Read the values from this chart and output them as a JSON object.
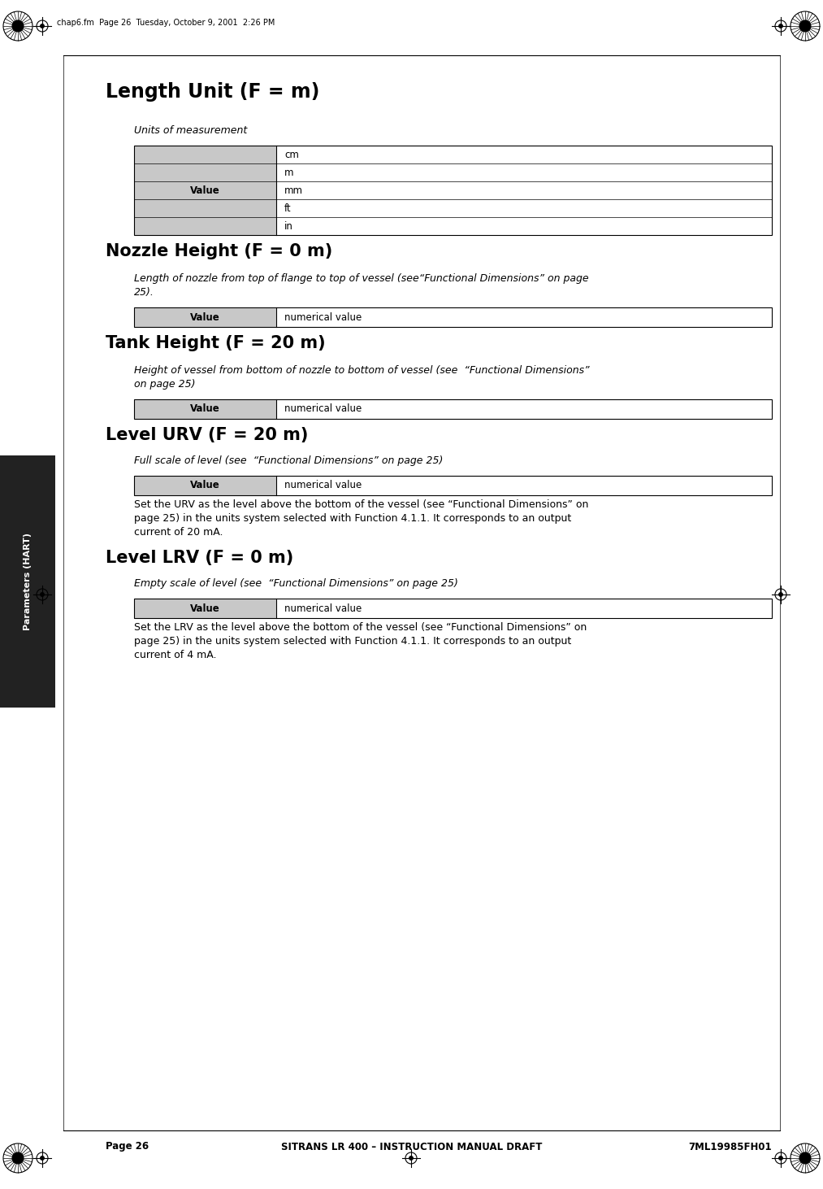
{
  "page_header": "chap6.fm  Page 26  Tuesday, October 9, 2001  2:26 PM",
  "page_footer_left": "Page 26",
  "page_footer_center": "SITRANS LR 400 – INSTRUCTION MANUAL DRAFT",
  "page_footer_right": "7ML19985FH01",
  "sidebar_text": "Parameters (HART)",
  "section1_title": "Length Unit (F = m)",
  "section1_subtitle": "Units of measurement",
  "section1_table_header": "Value",
  "section1_table_rows": [
    "cm",
    "m",
    "mm",
    "ft",
    "in"
  ],
  "section2_title": "Nozzle Height (F = 0 m)",
  "section2_desc_line1": "Length of nozzle from top of flange to top of vessel (see“Functional Dimensions” on page",
  "section2_desc_line2": "25).",
  "section2_table_header": "Value",
  "section2_table_value": "numerical value",
  "section3_title": "Tank Height (F = 20 m)",
  "section3_desc_line1": "Height of vessel from bottom of nozzle to bottom of vessel (see  “Functional Dimensions”",
  "section3_desc_line2": "on page 25)",
  "section3_table_header": "Value",
  "section3_table_value": "numerical value",
  "section4_title": "Level URV (F = 20 m)",
  "section4_subtitle": "Full scale of level (see  “Functional Dimensions” on page 25)",
  "section4_table_header": "Value",
  "section4_table_value": "numerical value",
  "section4_body_line1": "Set the URV as the level above the bottom of the vessel (see “Functional Dimensions” on",
  "section4_body_line2": "page 25) in the units system selected with Function 4.1.1. It corresponds to an output",
  "section4_body_line3": "current of 20 mA.",
  "section5_title": "Level LRV (F = 0 m)",
  "section5_subtitle": "Empty scale of level (see  “Functional Dimensions” on page 25)",
  "section5_table_header": "Value",
  "section5_table_value": "numerical value",
  "section5_body_line1": "Set the LRV as the level above the bottom of the vessel (see “Functional Dimensions” on",
  "section5_body_line2": "page 25) in the units system selected with Function 4.1.1. It corresponds to an output",
  "section5_body_line3": "current of 4 mA.",
  "bg_color": "#ffffff",
  "table_header_bg": "#c8c8c8",
  "table_border_color": "#000000",
  "sidebar_bg": "#222222",
  "sidebar_text_color": "#ffffff"
}
